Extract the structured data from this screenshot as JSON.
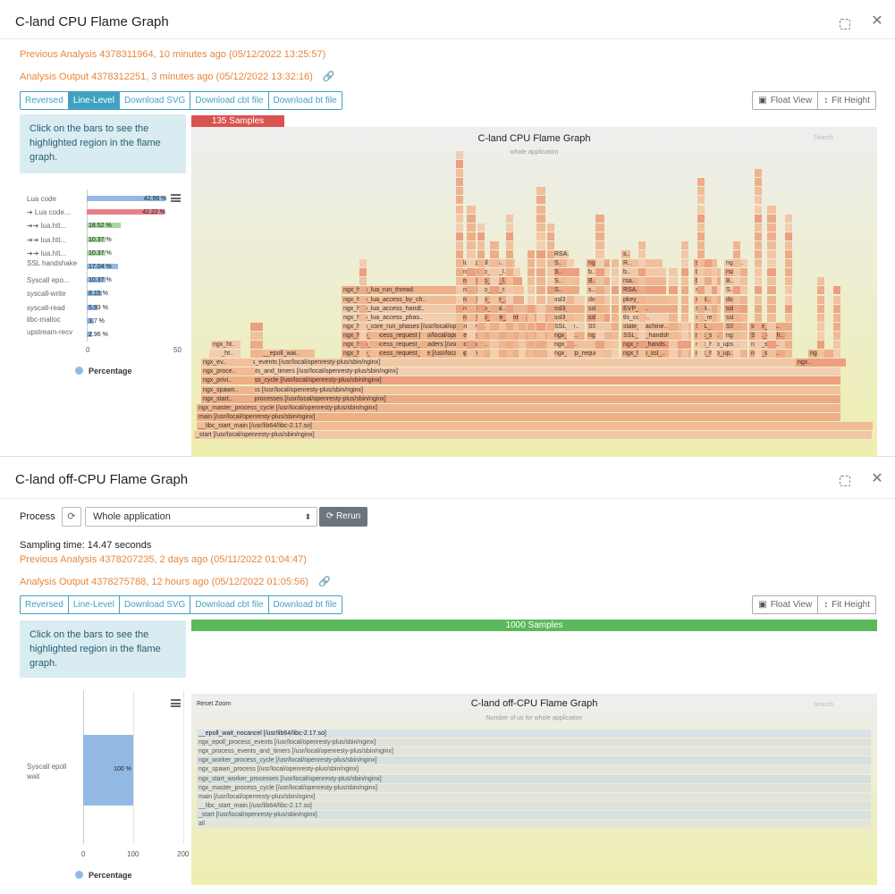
{
  "cpu_panel": {
    "title": "C-land CPU Flame Graph",
    "previous_analysis": "Previous Analysis 4378311964, 10 minutes ago (05/12/2022 13:25:57)",
    "analysis_output": "Analysis Output 4378312251, 3 minutes ago (05/12/2022 13:32:16)",
    "buttons": [
      "Reversed",
      "Line-Level",
      "Download SVG",
      "Download cbt file",
      "Download bt file"
    ],
    "active_button": "Line-Level",
    "float_view_label": "Float View",
    "fit_height_label": "Fit Height",
    "info_text": "Click on the bars to see the highlighted region in the flame graph.",
    "samples_label": "135 Samples",
    "flame_title": "C-land CPU Flame Graph",
    "flame_subtitle": "whole application",
    "search_label": "Search",
    "bar_chart": {
      "type": "bar",
      "categories": [
        "Lua code",
        "➔ Lua code...",
        "➔➔ lua.htt...",
        "➔➔ lua.htt...",
        "➔➔ lua.htt...",
        "SSL handshake",
        "Syscall epo...",
        "syscall-write",
        "syscall-read",
        "libc-malloc",
        "upstream-recv"
      ],
      "values": [
        42.96,
        42.22,
        18.52,
        10.37,
        10.37,
        17.04,
        10.37,
        8.15,
        5.93,
        3.7,
        2.96
      ],
      "value_labels": [
        "42.96 %",
        "42.22 %",
        "18.52 %",
        "10.37 %",
        "10.37 %",
        "17.04 %",
        "10.37 %",
        "8.15 %",
        "5.93 %",
        "3.7 %",
        "2.96 %"
      ],
      "colors": [
        "#92b9e4",
        "#e9818b",
        "#a8d8a0",
        "#a8d8a0",
        "#a8d8a0",
        "#92b9e4",
        "#92b9e4",
        "#92b9e4",
        "#92b9e4",
        "#92b9e4",
        "#92b9e4"
      ],
      "xlim": [
        0,
        50
      ],
      "ticks": [
        "0",
        "50"
      ],
      "legend": "Percentage"
    },
    "frames": [
      "_start [/usr/local/openresty-plus/sbin/nginx]",
      "__libc_start_main [/usr/lib64/libc-2.17.so]",
      "main [/usr/local/openresty-plus/sbin/nginx]",
      "ngx_master_process_cycle [/usr/local/openresty-plus/sbin/nginx]",
      "ngx_start_worker_processes [/usr/local/openresty-plus/sbin/nginx]",
      "ngx_spawn_process [/usr/local/openresty-plus/sbin/nginx]",
      "ngx_worker_process_cycle [/usr/local/openresty-plus/sbin/nginx]",
      "ngx_process_events_and_timers [/usr/local/openresty-plus/sbin/nginx]",
      "ngx_epoll_process_events [/usr/local/openresty-plus/sbin/nginx]",
      "ngx_http_process_request_line [/usr/local/openre..",
      "ngx_http_process_request_headers [/usr/local/ope..",
      "ngx_http_process_request [/usr/local/openresty-p..",
      "ngx_http_core_run_phases [/usr/local/openresty-p..",
      "ngx_http_core_conten..",
      "ngx_http_lua_access_phas..",
      "ngx_http_lua_access_handl..",
      "ngx_http_lua_access_by_ch..",
      "ngx_http_lua_run_thread",
      "ngx_http_final..",
      "ngx_http_free_..",
      "ngx_http_log_r..",
      "ngx_http_lua_l..",
      "ngx_http_lua_l..",
      "lua_pcall [/us..",
      "__epoll_wai..",
      "ngx_ht..",
      "ngx_ht..",
      "ngx_ev..",
      "ngx_proce..",
      "ngx_privi..",
      "ngx_spawn..",
      "ngx_start..",
      "ngx_http_reque..",
      "ngx_http_ssl_..",
      "ngx_ssl_hands..",
      "ngx_http_up..",
      "ngx_http_upst..",
      "ngx_ssl_..",
      "ngx_ss..",
      "SSL_do_handsh..",
      "ngx..",
      "SSL_do_h..",
      "SSL_re..",
      "SSL..",
      "state_machine..",
      "SSL_..",
      "state_ma..",
      "ssl3_r..",
      "ssl..",
      "EVP_Di..",
      "ssl3..",
      "ssl..",
      "tls_cons..",
      "ssl_re..",
      "ssl3_",
      "do_..",
      "pkey_r..",
      "ssl3..",
      "do_..",
      "RSA..",
      "S..",
      "s..",
      "b..",
      "rsa..",
      "b..",
      "B..",
      "R..",
      "ngx_.."
    ]
  },
  "offcpu_panel": {
    "title": "C-land off-CPU Flame Graph",
    "process_label": "Process",
    "process_value": "Whole application",
    "rerun_label": "Rerun",
    "sampling_time": "Sampling time: 14.47 seconds",
    "previous_analysis": "Previous Analysis 4378207235, 2 days ago (05/11/2022 01:04:47)",
    "analysis_output": "Analysis Output 4378275788, 12 hours ago (05/12/2022 01:05:56)",
    "buttons": [
      "Reversed",
      "Line-Level",
      "Download SVG",
      "Download cbt file",
      "Download bt file"
    ],
    "float_view_label": "Float View",
    "fit_height_label": "Fit Height",
    "info_text": "Click on the bars to see the highlighted region in the flame graph.",
    "samples_label": "1000 Samples",
    "reset_zoom": "Reset Zoom",
    "flame_title": "C-land off-CPU Flame Graph",
    "flame_subtitle": "Number of us for whole application",
    "search_label": "Search",
    "bar_chart": {
      "type": "bar",
      "categories": [
        "Syscall epoll wait"
      ],
      "values": [
        100
      ],
      "value_labels": [
        "100 %"
      ],
      "xlim": [
        0,
        200
      ],
      "ticks": [
        "0",
        "100",
        "200"
      ],
      "legend": "Percentage"
    },
    "frames": [
      "__epoll_wait_nocancel [/usr/lib64/libc-2.17.so]",
      "ngx_epoll_process_events [/usr/local/openresty-plus/sbin/nginx]",
      "ngx_process_events_and_timers [/usr/local/openresty-plus/sbin/nginx]",
      "ngx_worker_process_cycle [/usr/local/openresty-plus/sbin/nginx]",
      "ngx_spawn_process [/usr/local/openresty-plus/sbin/nginx]",
      "ngx_start_worker_processes [/usr/local/openresty-plus/sbin/nginx]",
      "ngx_master_process_cycle [/usr/local/openresty-plus/sbin/nginx]",
      "main [/usr/local/openresty-plus/sbin/nginx]",
      "__libc_start_main [/usr/lib64/libc-2.17.so]",
      "_start [/usr/local/openresty-plus/sbin/nginx]",
      "all"
    ]
  }
}
